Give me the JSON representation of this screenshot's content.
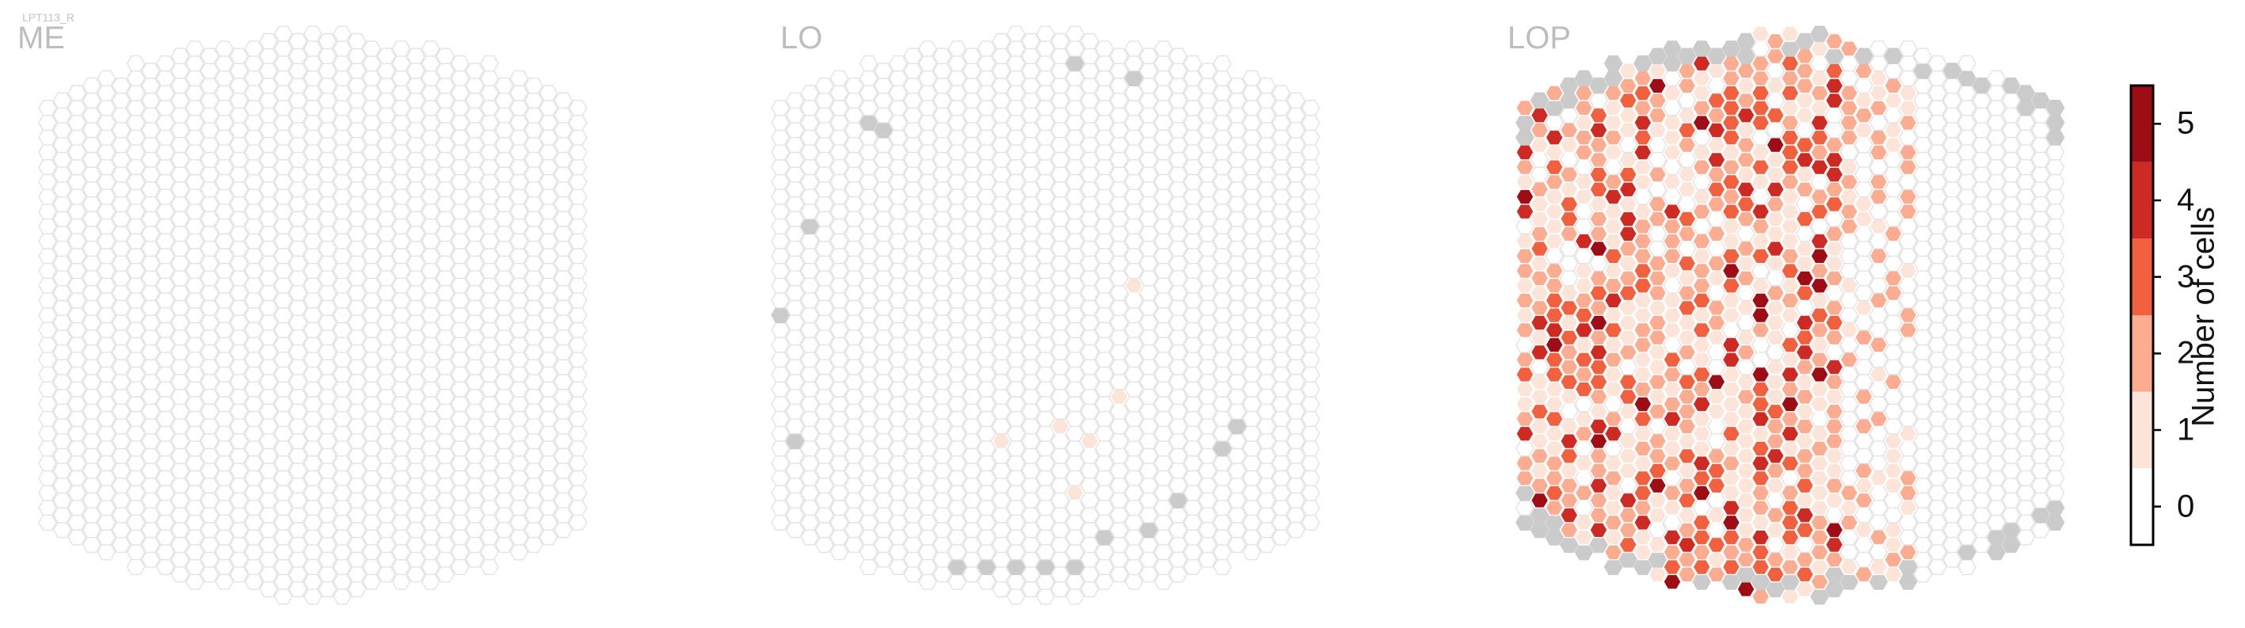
{
  "cell_type_label": "LPT113_R",
  "panels": [
    {
      "title": "ME"
    },
    {
      "title": "LO"
    },
    {
      "title": "LOP"
    }
  ],
  "colorbar": {
    "label": "Number of cells",
    "ticks": [
      "0",
      "1",
      "2",
      "3",
      "4",
      "5"
    ]
  },
  "colors": {
    "empty_outline": "#e3e3e3",
    "out_of_range": "#cbcbcb",
    "scale": [
      "#ffffff",
      "#fde4d8",
      "#fbac91",
      "#f1613f",
      "#cd2a24",
      "#9e0d15"
    ]
  },
  "chart_data": {
    "type": "heatmap",
    "description_of_values": "count of cells per column, discrete 0-5",
    "vmin": 0,
    "vmax": 5,
    "grid_on": false,
    "legend_placement": "right colorbar",
    "panels": [
      {
        "name": "ME",
        "nonzero_cells": [],
        "out_of_range_cells": []
      },
      {
        "name": "LO",
        "nonzero_cells": [
          {
            "col": 24,
            "row": 2,
            "value": 1
          },
          {
            "col": 19,
            "row": -7,
            "value": 1
          },
          {
            "col": 23,
            "row": -5,
            "value": 1
          },
          {
            "col": 21,
            "row": -8,
            "value": 1
          },
          {
            "col": 15,
            "row": -8,
            "value": 1
          },
          {
            "col": 20,
            "row": -12,
            "value": 1
          }
        ],
        "out_of_range_cells": [
          {
            "col": 20,
            "row": 17
          },
          {
            "col": 24,
            "row": 16
          },
          {
            "col": 6,
            "row": 13
          },
          {
            "col": 7,
            "row": 13
          },
          {
            "col": 2,
            "row": 6
          },
          {
            "col": 0,
            "row": 0
          },
          {
            "col": 1,
            "row": -8
          },
          {
            "col": 31,
            "row": -7
          },
          {
            "col": 30,
            "row": -9
          },
          {
            "col": 27,
            "row": -12
          },
          {
            "col": 25,
            "row": -14
          },
          {
            "col": 12,
            "row": -17
          },
          {
            "col": 14,
            "row": -17
          },
          {
            "col": 16,
            "row": -17
          },
          {
            "col": 18,
            "row": -17
          },
          {
            "col": 20,
            "row": -17
          },
          {
            "col": 22,
            "row": -15
          }
        ]
      },
      {
        "name": "LOP",
        "nonzero_cells_note": "dense patch concentrated on the left half of the eye map, values 1-5",
        "value_distribution": {
          "1": 120,
          "2": 110,
          "3": 70,
          "4": 25,
          "5": 12
        }
      }
    ]
  }
}
